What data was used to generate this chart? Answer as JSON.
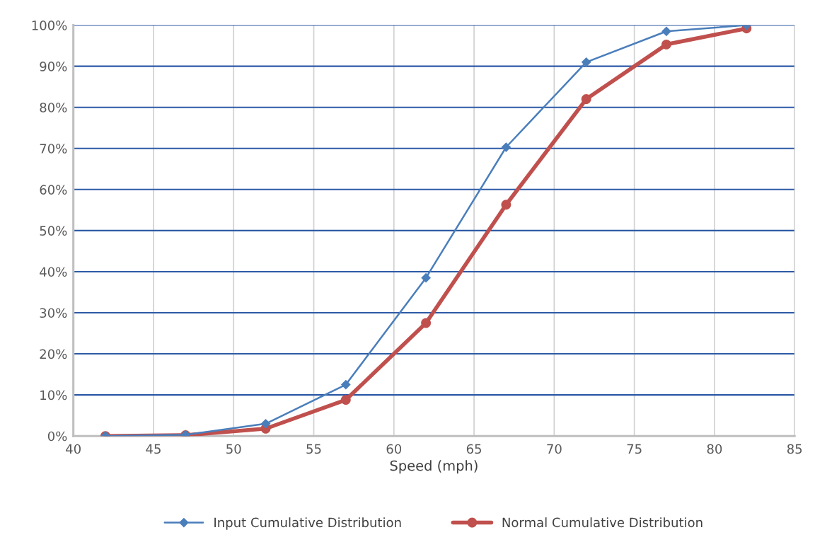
{
  "chart_data": {
    "type": "line",
    "xlabel": "Speed (mph)",
    "x": [
      42,
      47,
      52,
      57,
      62,
      67,
      72,
      77,
      82
    ],
    "series": [
      {
        "name": "Input Cumulative Distribution",
        "color": "#4a7ebb",
        "marker": "diamond",
        "values": [
          0,
          0.3,
          3,
          12.5,
          38.5,
          70.3,
          91,
          98.5,
          100
        ]
      },
      {
        "name": "Normal Cumulative Distribution",
        "color": "#c0504d",
        "marker": "circle",
        "values": [
          0,
          0.2,
          1.8,
          8.8,
          27.5,
          56.3,
          82,
          95.3,
          99.2
        ]
      }
    ],
    "xlim": [
      40,
      85
    ],
    "xticks": [
      40,
      45,
      50,
      55,
      60,
      65,
      70,
      75,
      80,
      85
    ],
    "ylim": [
      0,
      100
    ],
    "yticks": [
      {
        "value": 0,
        "label": "0%"
      },
      {
        "value": 10,
        "label": "10%"
      },
      {
        "value": 20,
        "label": "20%"
      },
      {
        "value": 30,
        "label": "30%"
      },
      {
        "value": 40,
        "label": "40%"
      },
      {
        "value": 50,
        "label": "50%"
      },
      {
        "value": 60,
        "label": "60%"
      },
      {
        "value": 70,
        "label": "70%"
      },
      {
        "value": 80,
        "label": "80%"
      },
      {
        "value": 90,
        "label": "90%"
      },
      {
        "value": 100,
        "label": "100%"
      }
    ],
    "grid": true,
    "legend": "bottom"
  }
}
